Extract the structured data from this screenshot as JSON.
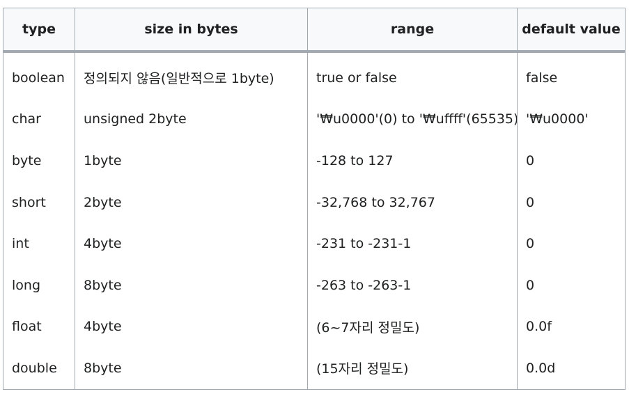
{
  "table": {
    "headers": [
      "type",
      "size in bytes",
      "range",
      "default value"
    ],
    "rows": [
      [
        "boolean",
        "정의되지 않음(일반적으로 1byte)",
        "true or false",
        "false"
      ],
      [
        "char",
        "unsigned 2byte",
        "'₩u0000'(0) to '₩uffff'(65535)",
        "'₩u0000'"
      ],
      [
        "byte",
        "1byte",
        "-128 to 127",
        "0"
      ],
      [
        "short",
        "2byte",
        "-32,768 to 32,767",
        "0"
      ],
      [
        "int",
        "4byte",
        "-231 to -231-1",
        "0"
      ],
      [
        "long",
        "8byte",
        "-263 to -263-1",
        "0"
      ],
      [
        "float",
        "4byte",
        "(6~7자리 정밀도)",
        "0.0f"
      ],
      [
        "double",
        "8byte",
        "(15자리 정밀도)",
        "0.0d"
      ]
    ]
  }
}
